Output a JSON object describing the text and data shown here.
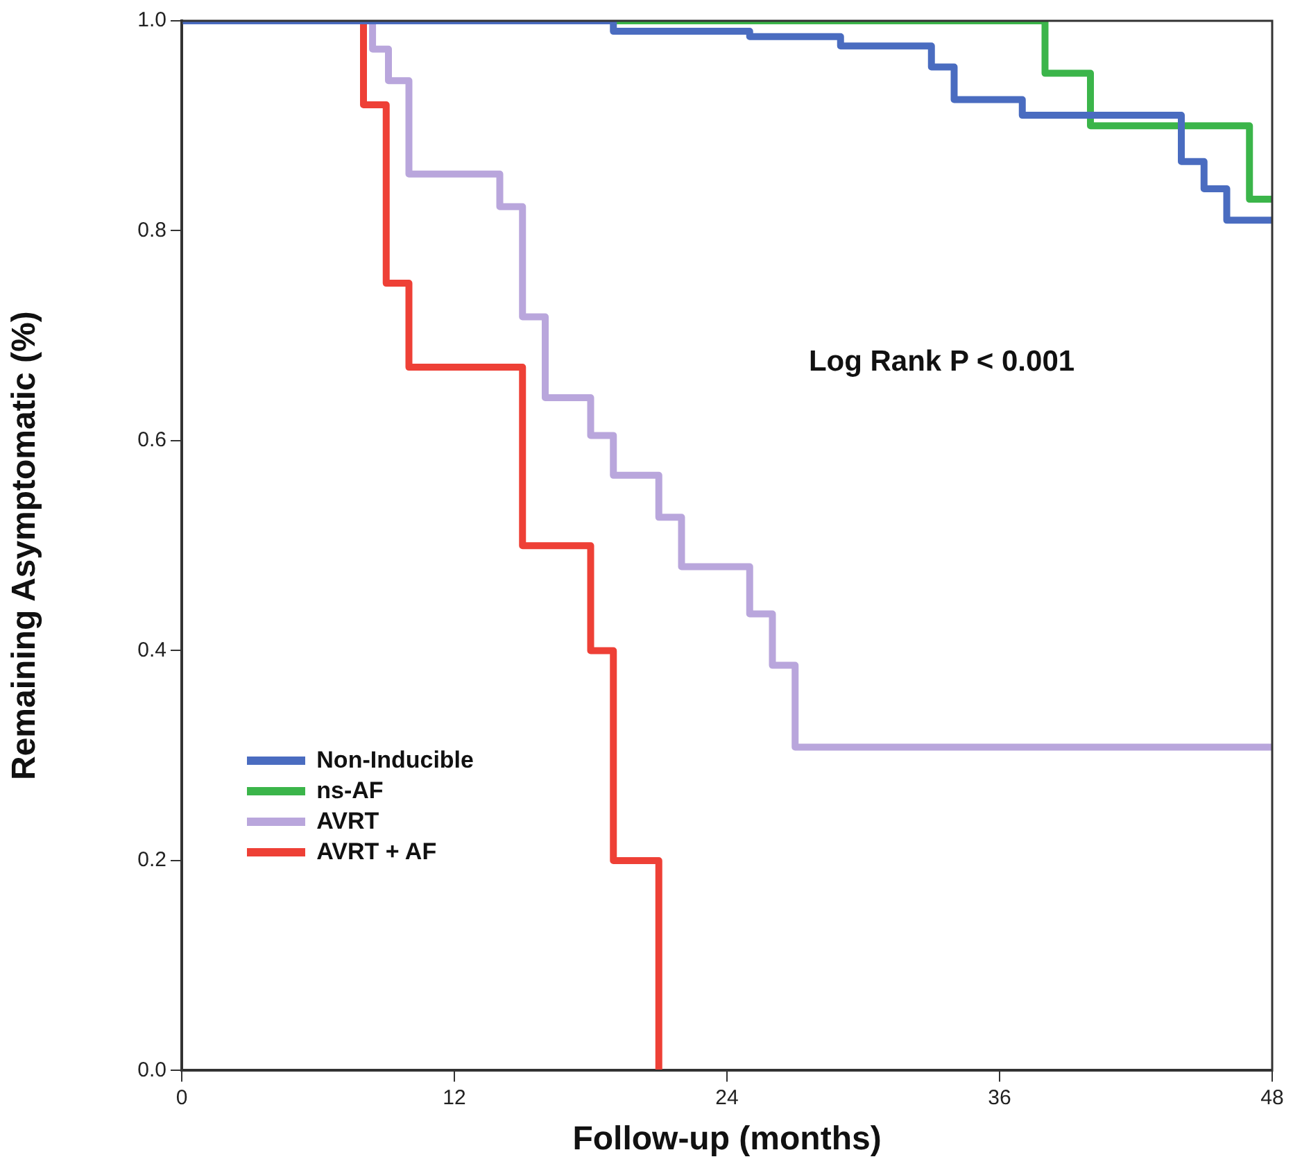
{
  "chart_data": {
    "type": "step",
    "xlabel": "Follow-up (months)",
    "ylabel": "Remaining Asymptomatic (%)",
    "annotations": [
      "Log Rank P < 0.001"
    ],
    "xlim": [
      0,
      48
    ],
    "xticks": [
      0,
      12,
      24,
      36,
      48
    ],
    "ylim": [
      0,
      1
    ],
    "yticks": [
      {
        "value": 0,
        "label": "0.0"
      },
      {
        "value": 0.2,
        "label": "0.2"
      },
      {
        "value": 0.4,
        "label": "0.4"
      },
      {
        "value": 0.6,
        "label": "0.6"
      },
      {
        "value": 0.8,
        "label": "0.8"
      },
      {
        "value": 1,
        "label": "1.0"
      }
    ],
    "grid": false,
    "legend": "bottom left",
    "marker": "none",
    "line_style": "solid",
    "series": [
      {
        "name": "Non-Inducible",
        "color": "#4a6cc0",
        "x": [
          0,
          19,
          25,
          29,
          33,
          34,
          37,
          44,
          45,
          46,
          48
        ],
        "values": [
          1,
          0.99,
          0.985,
          0.976,
          0.956,
          0.925,
          0.91,
          0.866,
          0.84,
          0.81,
          0.81
        ]
      },
      {
        "name": "ns-AF",
        "color": "#3bb54a",
        "x": [
          0,
          38,
          40,
          47,
          48
        ],
        "values": [
          1,
          0.95,
          0.9,
          0.83,
          0.83
        ]
      },
      {
        "name": "AVRT",
        "color": "#b9a6dc",
        "x": [
          0,
          8.4,
          9.1,
          10,
          14,
          15,
          16,
          18,
          19,
          21,
          22,
          25,
          26,
          27,
          48
        ],
        "values": [
          1,
          0.973,
          0.943,
          0.854,
          0.823,
          0.718,
          0.641,
          0.605,
          0.567,
          0.527,
          0.48,
          0.435,
          0.386,
          0.308,
          0.308
        ]
      },
      {
        "name": "AVRT + AF",
        "color": "#ee4036",
        "x": [
          0,
          8,
          9,
          10,
          15,
          18,
          19,
          21
        ],
        "values": [
          1,
          0.92,
          0.75,
          0.67,
          0.5,
          0.4,
          0.2,
          0
        ]
      }
    ]
  }
}
